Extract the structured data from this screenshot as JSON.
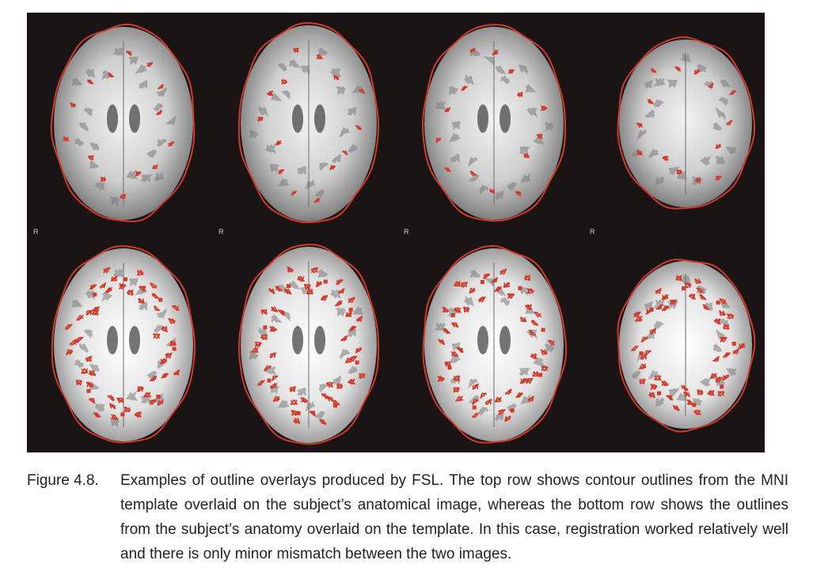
{
  "figure": {
    "side_marker": "R",
    "outline_color": "#d23a2a",
    "background_color": "#1a1414",
    "rows": [
      {
        "row": "top",
        "slices": [
          "slice-1",
          "slice-2",
          "slice-3",
          "slice-4"
        ],
        "outline_density": "sparse"
      },
      {
        "row": "bottom",
        "slices": [
          "slice-1",
          "slice-2",
          "slice-3",
          "slice-4"
        ],
        "outline_density": "dense"
      }
    ]
  },
  "caption": {
    "label": "Figure 4.8.",
    "text": "Examples of outline overlays produced by FSL. The top row shows contour outlines from the MNI template overlaid on the subject’s anatomical image, whereas the bottom row shows the outlines from the subject’s anatomy overlaid on the template. In this case, registration worked relatively well and there is only minor mismatch between the two images."
  }
}
